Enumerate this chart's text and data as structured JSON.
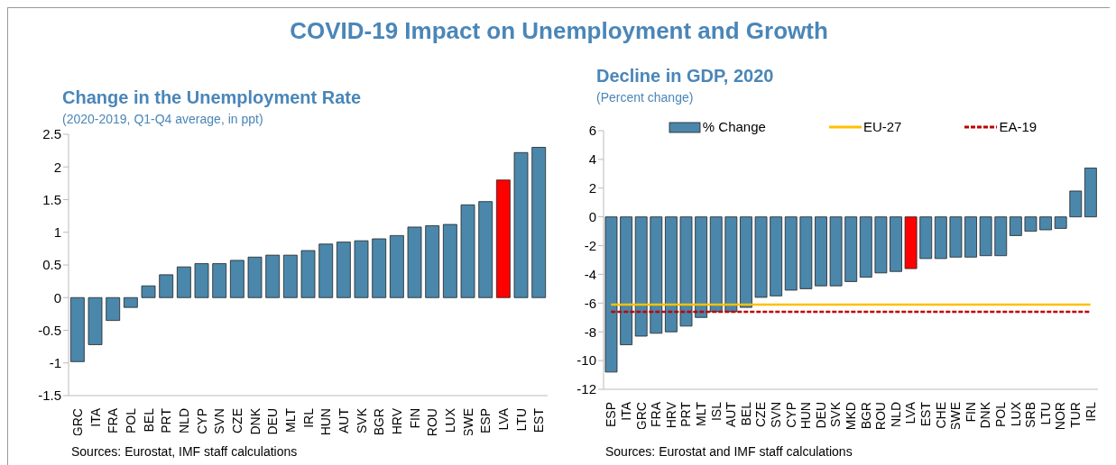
{
  "chart_data": [
    {
      "type": "other",
      "title": "COVID-19 Impact on Unemployment and Growth"
    },
    {
      "type": "bar",
      "title": "Change in the Unemployment Rate",
      "subtitle": "(2020-2019, Q1-Q4 average, in ppt)",
      "categories": [
        "GRC",
        "ITA",
        "FRA",
        "POL",
        "BEL",
        "PRT",
        "NLD",
        "CYP",
        "SVN",
        "CZE",
        "DNK",
        "DEU",
        "MLT",
        "IRL",
        "HUN",
        "AUT",
        "SVK",
        "BGR",
        "HRV",
        "FIN",
        "ROU",
        "LUX",
        "SWE",
        "ESP",
        "LVA",
        "LTU",
        "EST"
      ],
      "values": [
        -0.98,
        -0.72,
        -0.35,
        -0.15,
        0.18,
        0.35,
        0.47,
        0.52,
        0.52,
        0.57,
        0.62,
        0.65,
        0.65,
        0.72,
        0.82,
        0.85,
        0.87,
        0.9,
        0.95,
        1.08,
        1.1,
        1.12,
        1.42,
        1.47,
        1.8,
        2.22,
        2.3
      ],
      "colors": [
        "#4a87ab",
        "#4a87ab",
        "#4a87ab",
        "#4a87ab",
        "#4a87ab",
        "#4a87ab",
        "#4a87ab",
        "#4a87ab",
        "#4a87ab",
        "#4a87ab",
        "#4a87ab",
        "#4a87ab",
        "#4a87ab",
        "#4a87ab",
        "#4a87ab",
        "#4a87ab",
        "#4a87ab",
        "#4a87ab",
        "#4a87ab",
        "#4a87ab",
        "#4a87ab",
        "#4a87ab",
        "#4a87ab",
        "#4a87ab",
        "#ff0000",
        "#4a87ab",
        "#4a87ab"
      ],
      "ylim": [
        -1.5,
        2.5
      ],
      "yticks": [
        -1.5,
        -1,
        -0.5,
        0,
        0.5,
        1,
        1.5,
        2,
        2.5
      ],
      "annotations": [
        "Sources: Eurostat, IMF staff calculations"
      ]
    },
    {
      "type": "bar",
      "title": "Decline in GDP, 2020",
      "subtitle": "(Percent change)",
      "categories": [
        "ESP",
        "ITA",
        "GRC",
        "FRA",
        "HRV",
        "PRT",
        "MLT",
        "ISL",
        "AUT",
        "BEL",
        "CZE",
        "SVN",
        "CYP",
        "HUN",
        "DEU",
        "SVK",
        "MKD",
        "BGR",
        "ROU",
        "NLD",
        "LVA",
        "EST",
        "CHE",
        "SWE",
        "FIN",
        "DNK",
        "POL",
        "LUX",
        "SRB",
        "LTU",
        "NOR",
        "TUR",
        "IRL"
      ],
      "series": [
        {
          "name": "% Change",
          "type": "bar",
          "color": "#4a87ab",
          "colors": [
            "#4a87ab",
            "#4a87ab",
            "#4a87ab",
            "#4a87ab",
            "#4a87ab",
            "#4a87ab",
            "#4a87ab",
            "#4a87ab",
            "#4a87ab",
            "#4a87ab",
            "#4a87ab",
            "#4a87ab",
            "#4a87ab",
            "#4a87ab",
            "#4a87ab",
            "#4a87ab",
            "#4a87ab",
            "#4a87ab",
            "#4a87ab",
            "#4a87ab",
            "#ff0000",
            "#4a87ab",
            "#4a87ab",
            "#4a87ab",
            "#4a87ab",
            "#4a87ab",
            "#4a87ab",
            "#4a87ab",
            "#4a87ab",
            "#4a87ab",
            "#4a87ab",
            "#4a87ab",
            "#4a87ab"
          ],
          "values": [
            -10.8,
            -8.9,
            -8.3,
            -8.1,
            -8.0,
            -7.6,
            -7.0,
            -6.6,
            -6.6,
            -6.3,
            -5.6,
            -5.5,
            -5.1,
            -5.0,
            -4.8,
            -4.8,
            -4.5,
            -4.2,
            -3.9,
            -3.8,
            -3.6,
            -2.9,
            -2.9,
            -2.8,
            -2.8,
            -2.7,
            -2.7,
            -1.3,
            -1.0,
            -0.9,
            -0.8,
            1.8,
            3.4
          ]
        },
        {
          "name": "EU-27",
          "type": "line",
          "color": "#ffc000",
          "line_style": "solid",
          "values": [
            -6.1,
            -6.1,
            -6.1,
            -6.1,
            -6.1,
            -6.1,
            -6.1,
            -6.1,
            -6.1,
            -6.1,
            -6.1,
            -6.1,
            -6.1,
            -6.1,
            -6.1,
            -6.1,
            -6.1,
            -6.1,
            -6.1,
            -6.1,
            -6.1,
            -6.1,
            -6.1,
            -6.1,
            -6.1,
            -6.1,
            -6.1,
            -6.1,
            -6.1,
            -6.1,
            -6.1,
            -6.1,
            -6.1
          ]
        },
        {
          "name": "EA-19",
          "type": "line",
          "color": "#c00000",
          "line_style": "dashed",
          "values": [
            -6.6,
            -6.6,
            -6.6,
            -6.6,
            -6.6,
            -6.6,
            -6.6,
            -6.6,
            -6.6,
            -6.6,
            -6.6,
            -6.6,
            -6.6,
            -6.6,
            -6.6,
            -6.6,
            -6.6,
            -6.6,
            -6.6,
            -6.6,
            -6.6,
            -6.6,
            -6.6,
            -6.6,
            -6.6,
            -6.6,
            -6.6,
            -6.6,
            -6.6,
            -6.6,
            -6.6,
            -6.6,
            -6.6
          ]
        }
      ],
      "ylim": [
        -12,
        6
      ],
      "yticks": [
        -12,
        -10,
        -8,
        -6,
        -4,
        -2,
        0,
        2,
        4,
        6
      ],
      "legend": "top",
      "marker": "none",
      "annotations": [
        "Sources: Eurostat and IMF staff calculations"
      ]
    }
  ]
}
